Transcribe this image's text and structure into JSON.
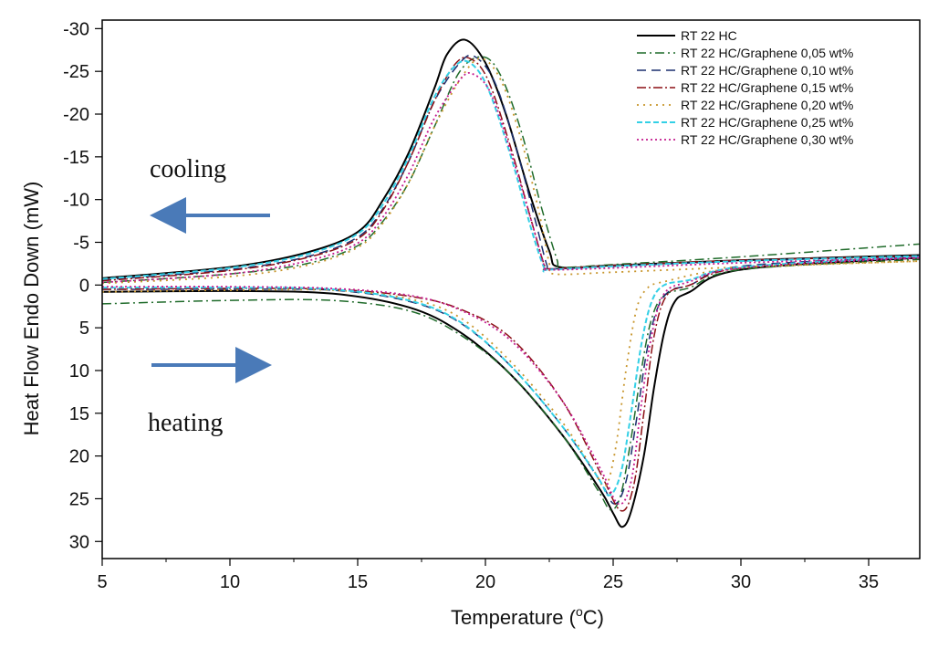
{
  "chart_data": {
    "type": "line",
    "xlabel": "Temperature (",
    "xlabel_sup": "o",
    "xlabel_end": "C)",
    "ylabel": "Heat Flow Endo Down (mW)",
    "xlim": [
      5,
      37
    ],
    "ylim": [
      -31,
      32
    ],
    "y_inverted": true,
    "x_ticks": [
      "5",
      "10",
      "15",
      "20",
      "25",
      "30",
      "35"
    ],
    "x_tick_values": [
      5,
      10,
      15,
      20,
      25,
      30,
      35
    ],
    "y_ticks": [
      "-30",
      "-25",
      "-20",
      "-15",
      "-10",
      "-5",
      "0",
      "5",
      "10",
      "15",
      "20",
      "25",
      "30"
    ],
    "y_tick_values": [
      -30,
      -25,
      -20,
      -15,
      -10,
      -5,
      0,
      5,
      10,
      15,
      20,
      25,
      30
    ],
    "grid": false,
    "legend_position": "top-right",
    "annotations": {
      "cooling": "cooling",
      "heating": "heating"
    },
    "series": [
      {
        "name": "RT 22 HC",
        "color": "#000000",
        "dash": "",
        "width": 2,
        "cooling": [
          [
            5,
            -0.8
          ],
          [
            10,
            -2.1
          ],
          [
            13,
            -3.8
          ],
          [
            15,
            -6.2
          ],
          [
            16,
            -10
          ],
          [
            17,
            -15.5
          ],
          [
            18,
            -23
          ],
          [
            18.5,
            -27
          ],
          [
            19.2,
            -28.7
          ],
          [
            20,
            -26
          ],
          [
            20.8,
            -20
          ],
          [
            21.7,
            -11
          ],
          [
            22.5,
            -4
          ],
          [
            22.9,
            -2.1
          ],
          [
            25,
            -2.3
          ],
          [
            30,
            -2.9
          ],
          [
            37,
            -3.5
          ]
        ],
        "heating": [
          [
            5,
            0.8
          ],
          [
            10,
            0.7
          ],
          [
            14,
            1.0
          ],
          [
            17,
            2.6
          ],
          [
            19,
            5.5
          ],
          [
            21,
            10.5
          ],
          [
            23,
            17.5
          ],
          [
            24.5,
            24
          ],
          [
            25,
            26.7
          ],
          [
            25.35,
            28.3
          ],
          [
            25.7,
            26.5
          ],
          [
            26.2,
            20
          ],
          [
            26.6,
            12
          ],
          [
            27,
            5.5
          ],
          [
            27.4,
            2.0
          ],
          [
            28,
            0.8
          ],
          [
            30,
            -1.8
          ],
          [
            37,
            -3.2
          ]
        ]
      },
      {
        "name": "RT 22 HC/Graphene 0,05 wt%",
        "color": "#1f6b2a",
        "dash": "10,4,2,4",
        "width": 1.5,
        "cooling": [
          [
            5,
            -0.3
          ],
          [
            10,
            -1.3
          ],
          [
            13,
            -2.5
          ],
          [
            15,
            -4.6
          ],
          [
            16,
            -7.5
          ],
          [
            17,
            -12
          ],
          [
            18,
            -18.5
          ],
          [
            19,
            -25
          ],
          [
            19.9,
            -26.7
          ],
          [
            20.6,
            -24.5
          ],
          [
            21.4,
            -18
          ],
          [
            22.2,
            -9
          ],
          [
            22.8,
            -3
          ],
          [
            23,
            -2.1
          ],
          [
            25,
            -2.4
          ],
          [
            30,
            -3.3
          ],
          [
            37,
            -4.8
          ]
        ],
        "heating": [
          [
            5,
            2.2
          ],
          [
            10,
            1.8
          ],
          [
            14,
            1.8
          ],
          [
            17,
            3.0
          ],
          [
            19,
            5.8
          ],
          [
            21,
            10.5
          ],
          [
            23,
            17.5
          ],
          [
            24.4,
            24
          ],
          [
            24.9,
            26.3
          ],
          [
            25.3,
            24.5
          ],
          [
            25.7,
            18
          ],
          [
            26.1,
            10
          ],
          [
            26.5,
            4
          ],
          [
            27,
            1.2
          ],
          [
            28,
            0.3
          ],
          [
            30,
            -1.8
          ],
          [
            37,
            -3.0
          ]
        ]
      },
      {
        "name": "RT 22 HC/Graphene 0,10 wt%",
        "color": "#1a2f6e",
        "dash": "10,6",
        "width": 1.5,
        "cooling": [
          [
            5,
            -0.6
          ],
          [
            10,
            -1.8
          ],
          [
            13,
            -3.3
          ],
          [
            15,
            -5.6
          ],
          [
            16,
            -9
          ],
          [
            17,
            -14.5
          ],
          [
            18,
            -21.5
          ],
          [
            19,
            -26
          ],
          [
            19.6,
            -26.7
          ],
          [
            20.4,
            -23.5
          ],
          [
            21.3,
            -15
          ],
          [
            22,
            -7
          ],
          [
            22.4,
            -2.4
          ],
          [
            22.6,
            -1.9
          ],
          [
            25,
            -2.2
          ],
          [
            30,
            -2.8
          ],
          [
            37,
            -3.4
          ]
        ],
        "heating": [
          [
            5,
            0.5
          ],
          [
            10,
            0.5
          ],
          [
            14,
            0.6
          ],
          [
            17,
            1.9
          ],
          [
            19,
            4.4
          ],
          [
            21,
            9.5
          ],
          [
            23,
            16.5
          ],
          [
            24.5,
            23
          ],
          [
            25.05,
            25.6
          ],
          [
            25.5,
            23
          ],
          [
            25.9,
            16
          ],
          [
            26.3,
            8
          ],
          [
            26.7,
            3
          ],
          [
            27.2,
            0.7
          ],
          [
            28,
            0
          ],
          [
            30,
            -2.2
          ],
          [
            37,
            -3.3
          ]
        ]
      },
      {
        "name": "RT 22 HC/Graphene 0,15 wt%",
        "color": "#8b0f14",
        "dash": "10,3,2,3",
        "width": 1.5,
        "cooling": [
          [
            5,
            -0.5
          ],
          [
            10,
            -1.7
          ],
          [
            13,
            -3.2
          ],
          [
            15,
            -5.4
          ],
          [
            16,
            -8.8
          ],
          [
            17,
            -14.5
          ],
          [
            18,
            -21.5
          ],
          [
            18.8,
            -25.8
          ],
          [
            19.4,
            -26.5
          ],
          [
            20.1,
            -24
          ],
          [
            21,
            -16
          ],
          [
            21.8,
            -7.5
          ],
          [
            22.3,
            -2.4
          ],
          [
            22.5,
            -1.9
          ],
          [
            25,
            -2.3
          ],
          [
            30,
            -2.9
          ],
          [
            37,
            -3.4
          ]
        ],
        "heating": [
          [
            5,
            0.5
          ],
          [
            10,
            0.4
          ],
          [
            14,
            0.5
          ],
          [
            17,
            1.3
          ],
          [
            19,
            2.8
          ],
          [
            21,
            6.2
          ],
          [
            23,
            13.5
          ],
          [
            24.5,
            22
          ],
          [
            25.3,
            26.4
          ],
          [
            25.8,
            23.5
          ],
          [
            26.2,
            15
          ],
          [
            26.6,
            6
          ],
          [
            27.1,
            1.2
          ],
          [
            28,
            0
          ],
          [
            30,
            -2.0
          ],
          [
            37,
            -3.3
          ]
        ]
      },
      {
        "name": "RT 22 HC/Graphene 0,20 wt%",
        "color": "#c8962d",
        "dash": "2,5",
        "width": 1.8,
        "cooling": [
          [
            5,
            -0.2
          ],
          [
            10,
            -1.0
          ],
          [
            13,
            -2.3
          ],
          [
            15,
            -4.4
          ],
          [
            16,
            -7.3
          ],
          [
            17,
            -12
          ],
          [
            18,
            -18.5
          ],
          [
            19,
            -24
          ],
          [
            19.8,
            -26.5
          ],
          [
            20.6,
            -24
          ],
          [
            21.4,
            -17
          ],
          [
            22.1,
            -8.5
          ],
          [
            22.5,
            -2.5
          ],
          [
            22.7,
            -1.3
          ],
          [
            25,
            -1.5
          ],
          [
            30,
            -2.1
          ],
          [
            37,
            -2.8
          ]
        ],
        "heating": [
          [
            5,
            0.8
          ],
          [
            10,
            0.6
          ],
          [
            14,
            0.6
          ],
          [
            17,
            1.6
          ],
          [
            19,
            3.8
          ],
          [
            21,
            9
          ],
          [
            23,
            16
          ],
          [
            24.2,
            21.5
          ],
          [
            24.7,
            23.5
          ],
          [
            25.1,
            19
          ],
          [
            25.5,
            10
          ],
          [
            25.9,
            3
          ],
          [
            26.3,
            0.5
          ],
          [
            27,
            -0.4
          ],
          [
            30,
            -2.0
          ],
          [
            37,
            -2.8
          ]
        ]
      },
      {
        "name": "RT 22 HC/Graphene 0,25 wt%",
        "color": "#33d0e6",
        "dash": "6,3",
        "width": 2,
        "cooling": [
          [
            5,
            -0.7
          ],
          [
            10,
            -2.0
          ],
          [
            13,
            -3.6
          ],
          [
            15,
            -6
          ],
          [
            16,
            -9.5
          ],
          [
            17,
            -15
          ],
          [
            18,
            -22
          ],
          [
            18.8,
            -25.6
          ],
          [
            19.4,
            -26
          ],
          [
            20.1,
            -23
          ],
          [
            21,
            -15
          ],
          [
            21.8,
            -6.5
          ],
          [
            22.3,
            -2
          ],
          [
            22.5,
            -1.8
          ],
          [
            25,
            -2.2
          ],
          [
            30,
            -2.8
          ],
          [
            37,
            -3.4
          ]
        ],
        "heating": [
          [
            5,
            0.3
          ],
          [
            10,
            0.3
          ],
          [
            14,
            0.5
          ],
          [
            17,
            1.8
          ],
          [
            19,
            4.3
          ],
          [
            21,
            9.5
          ],
          [
            23,
            16.5
          ],
          [
            24.4,
            22.5
          ],
          [
            24.85,
            24.6
          ],
          [
            25.3,
            22
          ],
          [
            25.7,
            15
          ],
          [
            26.1,
            7
          ],
          [
            26.5,
            2
          ],
          [
            27,
            0
          ],
          [
            28,
            -0.6
          ],
          [
            30,
            -2.1
          ],
          [
            37,
            -3.3
          ]
        ]
      },
      {
        "name": "RT 22 HC/Graphene 0,30 wt%",
        "color": "#c41b8f",
        "dash": "2,3",
        "width": 1.8,
        "cooling": [
          [
            5,
            -0.3
          ],
          [
            10,
            -1.3
          ],
          [
            13,
            -2.8
          ],
          [
            15,
            -4.9
          ],
          [
            16,
            -8
          ],
          [
            17,
            -13
          ],
          [
            18,
            -19.5
          ],
          [
            19,
            -24
          ],
          [
            19.5,
            -24.7
          ],
          [
            20.2,
            -22.5
          ],
          [
            21,
            -15.5
          ],
          [
            21.8,
            -7.5
          ],
          [
            22.3,
            -2.3
          ],
          [
            22.5,
            -1.8
          ],
          [
            25,
            -2.0
          ],
          [
            30,
            -2.6
          ],
          [
            37,
            -3.2
          ]
        ],
        "heating": [
          [
            5,
            0.2
          ],
          [
            10,
            0.2
          ],
          [
            14,
            0.4
          ],
          [
            17,
            1.2
          ],
          [
            19,
            2.9
          ],
          [
            21,
            6.5
          ],
          [
            23,
            13.5
          ],
          [
            24.5,
            21.5
          ],
          [
            25.2,
            25.6
          ],
          [
            25.7,
            23
          ],
          [
            26.1,
            14
          ],
          [
            26.5,
            6
          ],
          [
            27,
            1
          ],
          [
            28,
            -0.4
          ],
          [
            30,
            -2.0
          ],
          [
            37,
            -3.2
          ]
        ]
      }
    ]
  }
}
